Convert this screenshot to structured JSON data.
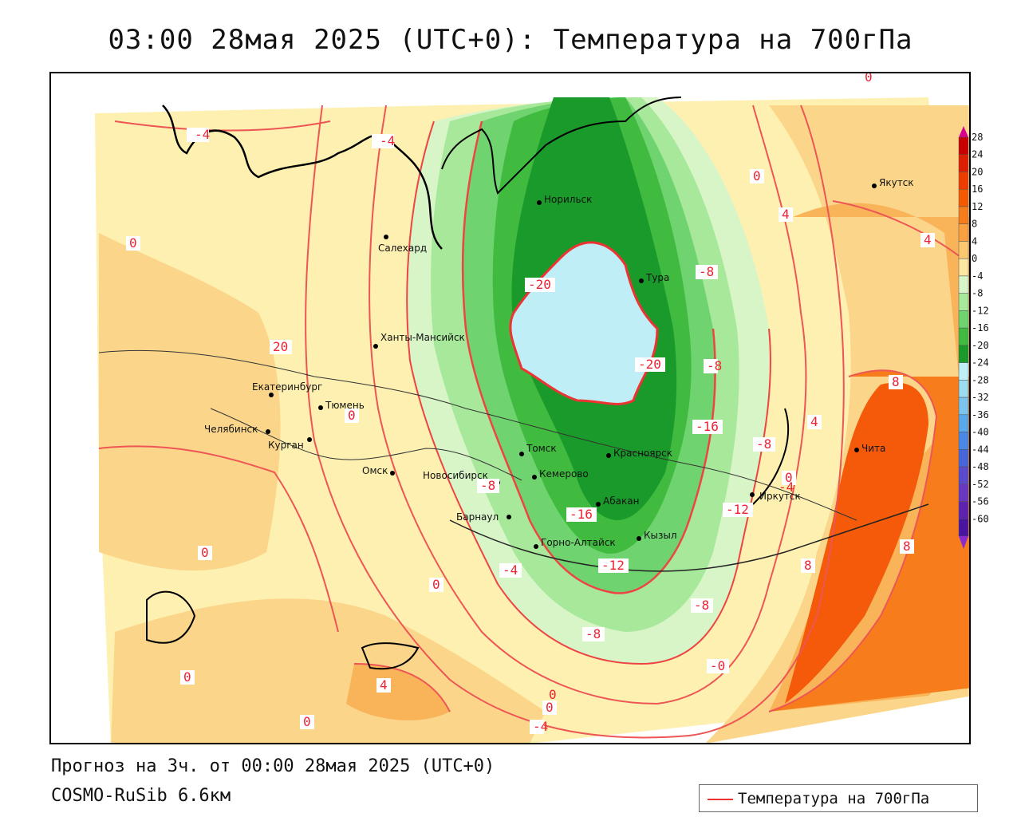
{
  "title": "03:00 28мая 2025 (UTC+0): Температура на 700гПа",
  "footer": {
    "forecast": "Прогноз на 3ч. от 00:00 28мая 2025 (UTC+0)",
    "model": "COSMO-RuSib 6.6км"
  },
  "legend": {
    "label": "Температура на 700гПа",
    "line_color": "#e33333"
  },
  "colorbar": {
    "labels": [
      "28",
      "24",
      "20",
      "16",
      "12",
      "8",
      "4",
      "0",
      "-4",
      "-8",
      "-12",
      "-16",
      "-20",
      "-24",
      "-28",
      "-32",
      "-36",
      "-40",
      "-44",
      "-48",
      "-52",
      "-56",
      "-60"
    ],
    "colors": [
      "#c80000",
      "#dd1e00",
      "#ee3c00",
      "#f55a00",
      "#f77d1c",
      "#f9a040",
      "#fbc870",
      "#fde6a0",
      "#d8f5c8",
      "#a8e89a",
      "#6fd46f",
      "#40bb40",
      "#1a9a2a",
      "#bfeef6",
      "#9cdcf0",
      "#7ac4ee",
      "#5aa8ec",
      "#4a88e6",
      "#4866dc",
      "#5a4acc",
      "#6a38c0",
      "#5e22b0",
      "#4a14a0"
    ]
  },
  "cities": [
    {
      "name": "Норильск"
    },
    {
      "name": "Тура"
    },
    {
      "name": "Якутск"
    },
    {
      "name": "Салехард"
    },
    {
      "name": "Ханты-Мансийск"
    },
    {
      "name": "Екатеринбург"
    },
    {
      "name": "Тюмень"
    },
    {
      "name": "Челябинск"
    },
    {
      "name": "Курган"
    },
    {
      "name": "Омск"
    },
    {
      "name": "Новосибирск"
    },
    {
      "name": "Томск"
    },
    {
      "name": "Красноярск"
    },
    {
      "name": "Кемерово"
    },
    {
      "name": "Абакан"
    },
    {
      "name": "Барнаул"
    },
    {
      "name": "Горно-Алтайск"
    },
    {
      "name": "Кызыл"
    },
    {
      "name": "Иркутск"
    },
    {
      "name": "Чита"
    }
  ],
  "contour_labels": [
    "-4",
    "-4",
    "0",
    "0",
    "-20",
    "-20",
    "-16",
    "-8",
    "-8",
    "-8",
    "-16",
    "-12",
    "-12",
    "-8",
    "-8",
    "-4",
    "0",
    "0",
    "0",
    "0",
    "0",
    "0",
    "4",
    "4",
    "4",
    "4",
    "8",
    "8",
    "8",
    "20",
    "0",
    "0",
    "-4",
    "-8",
    "-0",
    "-4",
    "0"
  ],
  "colors": {
    "warm_light": "#fdf0b0",
    "warm": "#fbd68a",
    "warmer": "#f9b45a",
    "orange": "#f77d1c",
    "hot": "#f45a0a",
    "cool_light": "#d8f5c8",
    "green_light": "#a8e89a",
    "green": "#6fd46f",
    "green_mid": "#40bb40",
    "green_dark": "#1a9a2a",
    "ice": "#bfeef6"
  }
}
